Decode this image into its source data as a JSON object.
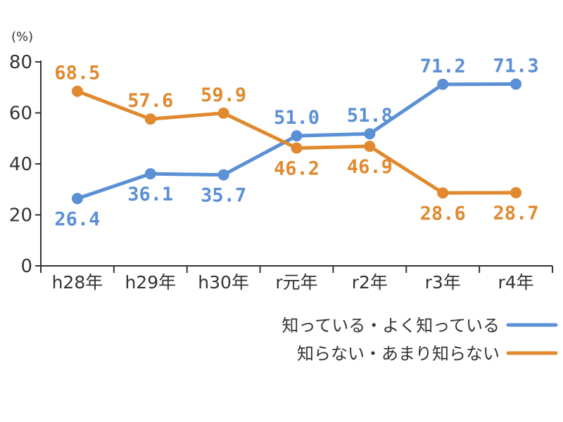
{
  "chart_data": {
    "type": "line",
    "unit_label": "(%)",
    "ylim": [
      0,
      80
    ],
    "yticks": [
      0,
      20,
      40,
      60,
      80
    ],
    "categories": [
      "h28年",
      "h29年",
      "h30年",
      "r元年",
      "r2年",
      "r3年",
      "r4年"
    ],
    "series": [
      {
        "name": "知っている・よく知っている",
        "color": "#5b8fd6",
        "values": [
          26.4,
          36.1,
          35.7,
          51.0,
          51.8,
          71.2,
          71.3
        ],
        "labels": [
          "26.4",
          "36.1",
          "35.7",
          "51.0",
          "51.8",
          "71.2",
          "71.3"
        ],
        "label_positions": [
          "below",
          "below",
          "below",
          "above",
          "above",
          "above",
          "above"
        ]
      },
      {
        "name": "知らない・あまり知らない",
        "color": "#e0892e",
        "values": [
          68.5,
          57.6,
          59.9,
          46.2,
          46.9,
          28.6,
          28.7
        ],
        "labels": [
          "68.5",
          "57.6",
          "59.9",
          "46.2",
          "46.9",
          "28.6",
          "28.7"
        ],
        "label_positions": [
          "above",
          "above",
          "above",
          "below",
          "below",
          "below",
          "below"
        ]
      }
    ],
    "legend_position": "bottom-right"
  }
}
